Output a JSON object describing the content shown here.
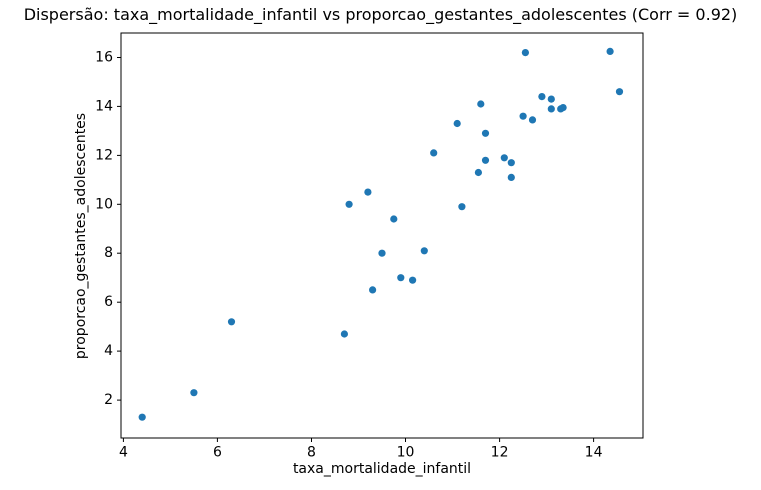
{
  "figure": {
    "background_color": "#ffffff",
    "spine_color": "#000000",
    "text_color": "#000000"
  },
  "chart_data": {
    "type": "scatter",
    "title": "Dispersão: taxa_mortalidade_infantil vs proporcao_gestantes_adolescentes (Corr = 0.92)",
    "xlabel": "taxa_mortalidade_infantil",
    "ylabel": "proporcao_gestantes_adolescentes",
    "correlation": 0.92,
    "marker_color": "#1f77b4",
    "grid": false,
    "legend": "none",
    "xlim": [
      3.95,
      15.05
    ],
    "ylim": [
      0.45,
      17.0
    ],
    "xticks": [
      4,
      6,
      8,
      10,
      12,
      14
    ],
    "yticks": [
      2,
      4,
      6,
      8,
      10,
      12,
      14,
      16
    ],
    "points": [
      [
        4.4,
        1.3
      ],
      [
        5.5,
        2.3
      ],
      [
        6.3,
        5.2
      ],
      [
        8.7,
        4.7
      ],
      [
        8.8,
        10.0
      ],
      [
        9.2,
        10.5
      ],
      [
        9.3,
        6.5
      ],
      [
        9.5,
        8.0
      ],
      [
        9.75,
        9.4
      ],
      [
        9.9,
        7.0
      ],
      [
        10.15,
        6.9
      ],
      [
        10.4,
        8.1
      ],
      [
        10.6,
        12.1
      ],
      [
        11.1,
        13.3
      ],
      [
        11.2,
        9.9
      ],
      [
        11.55,
        11.3
      ],
      [
        11.6,
        14.1
      ],
      [
        11.7,
        12.9
      ],
      [
        11.7,
        11.8
      ],
      [
        12.1,
        11.9
      ],
      [
        12.25,
        11.7
      ],
      [
        12.25,
        11.1
      ],
      [
        12.5,
        13.6
      ],
      [
        12.55,
        16.2
      ],
      [
        12.7,
        13.45
      ],
      [
        12.9,
        14.4
      ],
      [
        13.1,
        14.3
      ],
      [
        13.1,
        13.9
      ],
      [
        13.3,
        13.9
      ],
      [
        13.35,
        13.95
      ],
      [
        14.35,
        16.25
      ],
      [
        14.55,
        14.6
      ]
    ]
  }
}
